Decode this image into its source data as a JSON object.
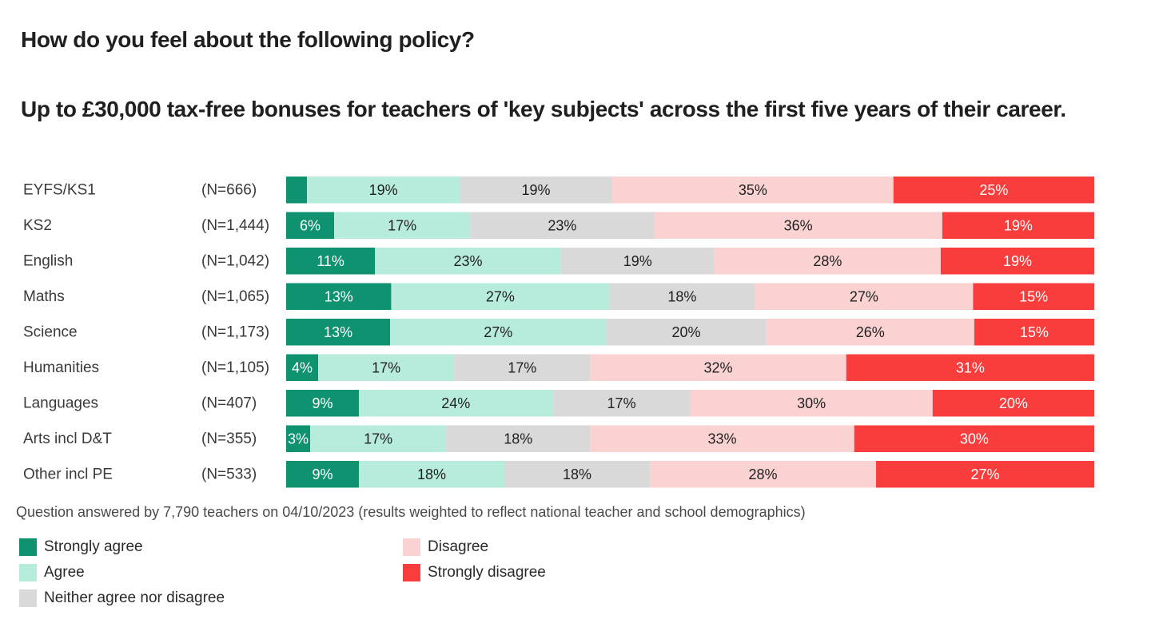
{
  "header": {
    "title": "How do you feel about the following policy?",
    "subtitle": "Up to £30,000 tax-free bonuses for teachers of 'key subjects' across the first five years of their career."
  },
  "footnote": "Question answered by 7,790 teachers on 04/10/2023 (results weighted to reflect national teacher and school demographics)",
  "chart_data": {
    "type": "bar",
    "orientation": "horizontal",
    "stacked": true,
    "percent_stacked": true,
    "categories": [
      "EYFS/KS1",
      "KS2",
      "English",
      "Maths",
      "Science",
      "Humanities",
      "Languages",
      "Arts incl D&T",
      "Other incl PE"
    ],
    "sample_sizes": [
      "(N=666)",
      "(N=1,444)",
      "(N=1,042)",
      "(N=1,065)",
      "(N=1,173)",
      "(N=1,105)",
      "(N=407)",
      "(N=355)",
      "(N=533)"
    ],
    "series": [
      {
        "name": "Strongly agree",
        "color": "#0e9270",
        "text_color": "#ffffff",
        "values": [
          2.6,
          6,
          11,
          13,
          13,
          4,
          9,
          3,
          9
        ],
        "labels": [
          "",
          "6%",
          "11%",
          "13%",
          "13%",
          "4%",
          "9%",
          "3%",
          "9%"
        ]
      },
      {
        "name": "Agree",
        "color": "#b7ecdc",
        "text_color": "#1f1f1f",
        "values": [
          19,
          17,
          23,
          27,
          27,
          17,
          24,
          17,
          18
        ],
        "labels": [
          "19%",
          "17%",
          "23%",
          "27%",
          "27%",
          "17%",
          "24%",
          "17%",
          "18%"
        ]
      },
      {
        "name": "Neither agree nor disagree",
        "color": "#d9d9d9",
        "text_color": "#1f1f1f",
        "values": [
          19,
          23,
          19,
          18,
          20,
          17,
          17,
          18,
          18
        ],
        "labels": [
          "19%",
          "23%",
          "19%",
          "18%",
          "20%",
          "17%",
          "17%",
          "18%",
          "18%"
        ]
      },
      {
        "name": "Disagree",
        "color": "#fbd2d2",
        "text_color": "#1f1f1f",
        "values": [
          35,
          36,
          28,
          27,
          26,
          32,
          30,
          33,
          28
        ],
        "labels": [
          "35%",
          "36%",
          "28%",
          "27%",
          "26%",
          "32%",
          "30%",
          "33%",
          "28%"
        ]
      },
      {
        "name": "Strongly disagree",
        "color": "#f93c3c",
        "text_color": "#ffffff",
        "values": [
          25,
          19,
          19,
          15,
          15,
          31,
          20,
          30,
          27
        ],
        "labels": [
          "25%",
          "19%",
          "19%",
          "15%",
          "15%",
          "31%",
          "20%",
          "30%",
          "27%"
        ]
      }
    ],
    "xlim": [
      0,
      100
    ],
    "grid": false,
    "legend_position": "bottom"
  }
}
